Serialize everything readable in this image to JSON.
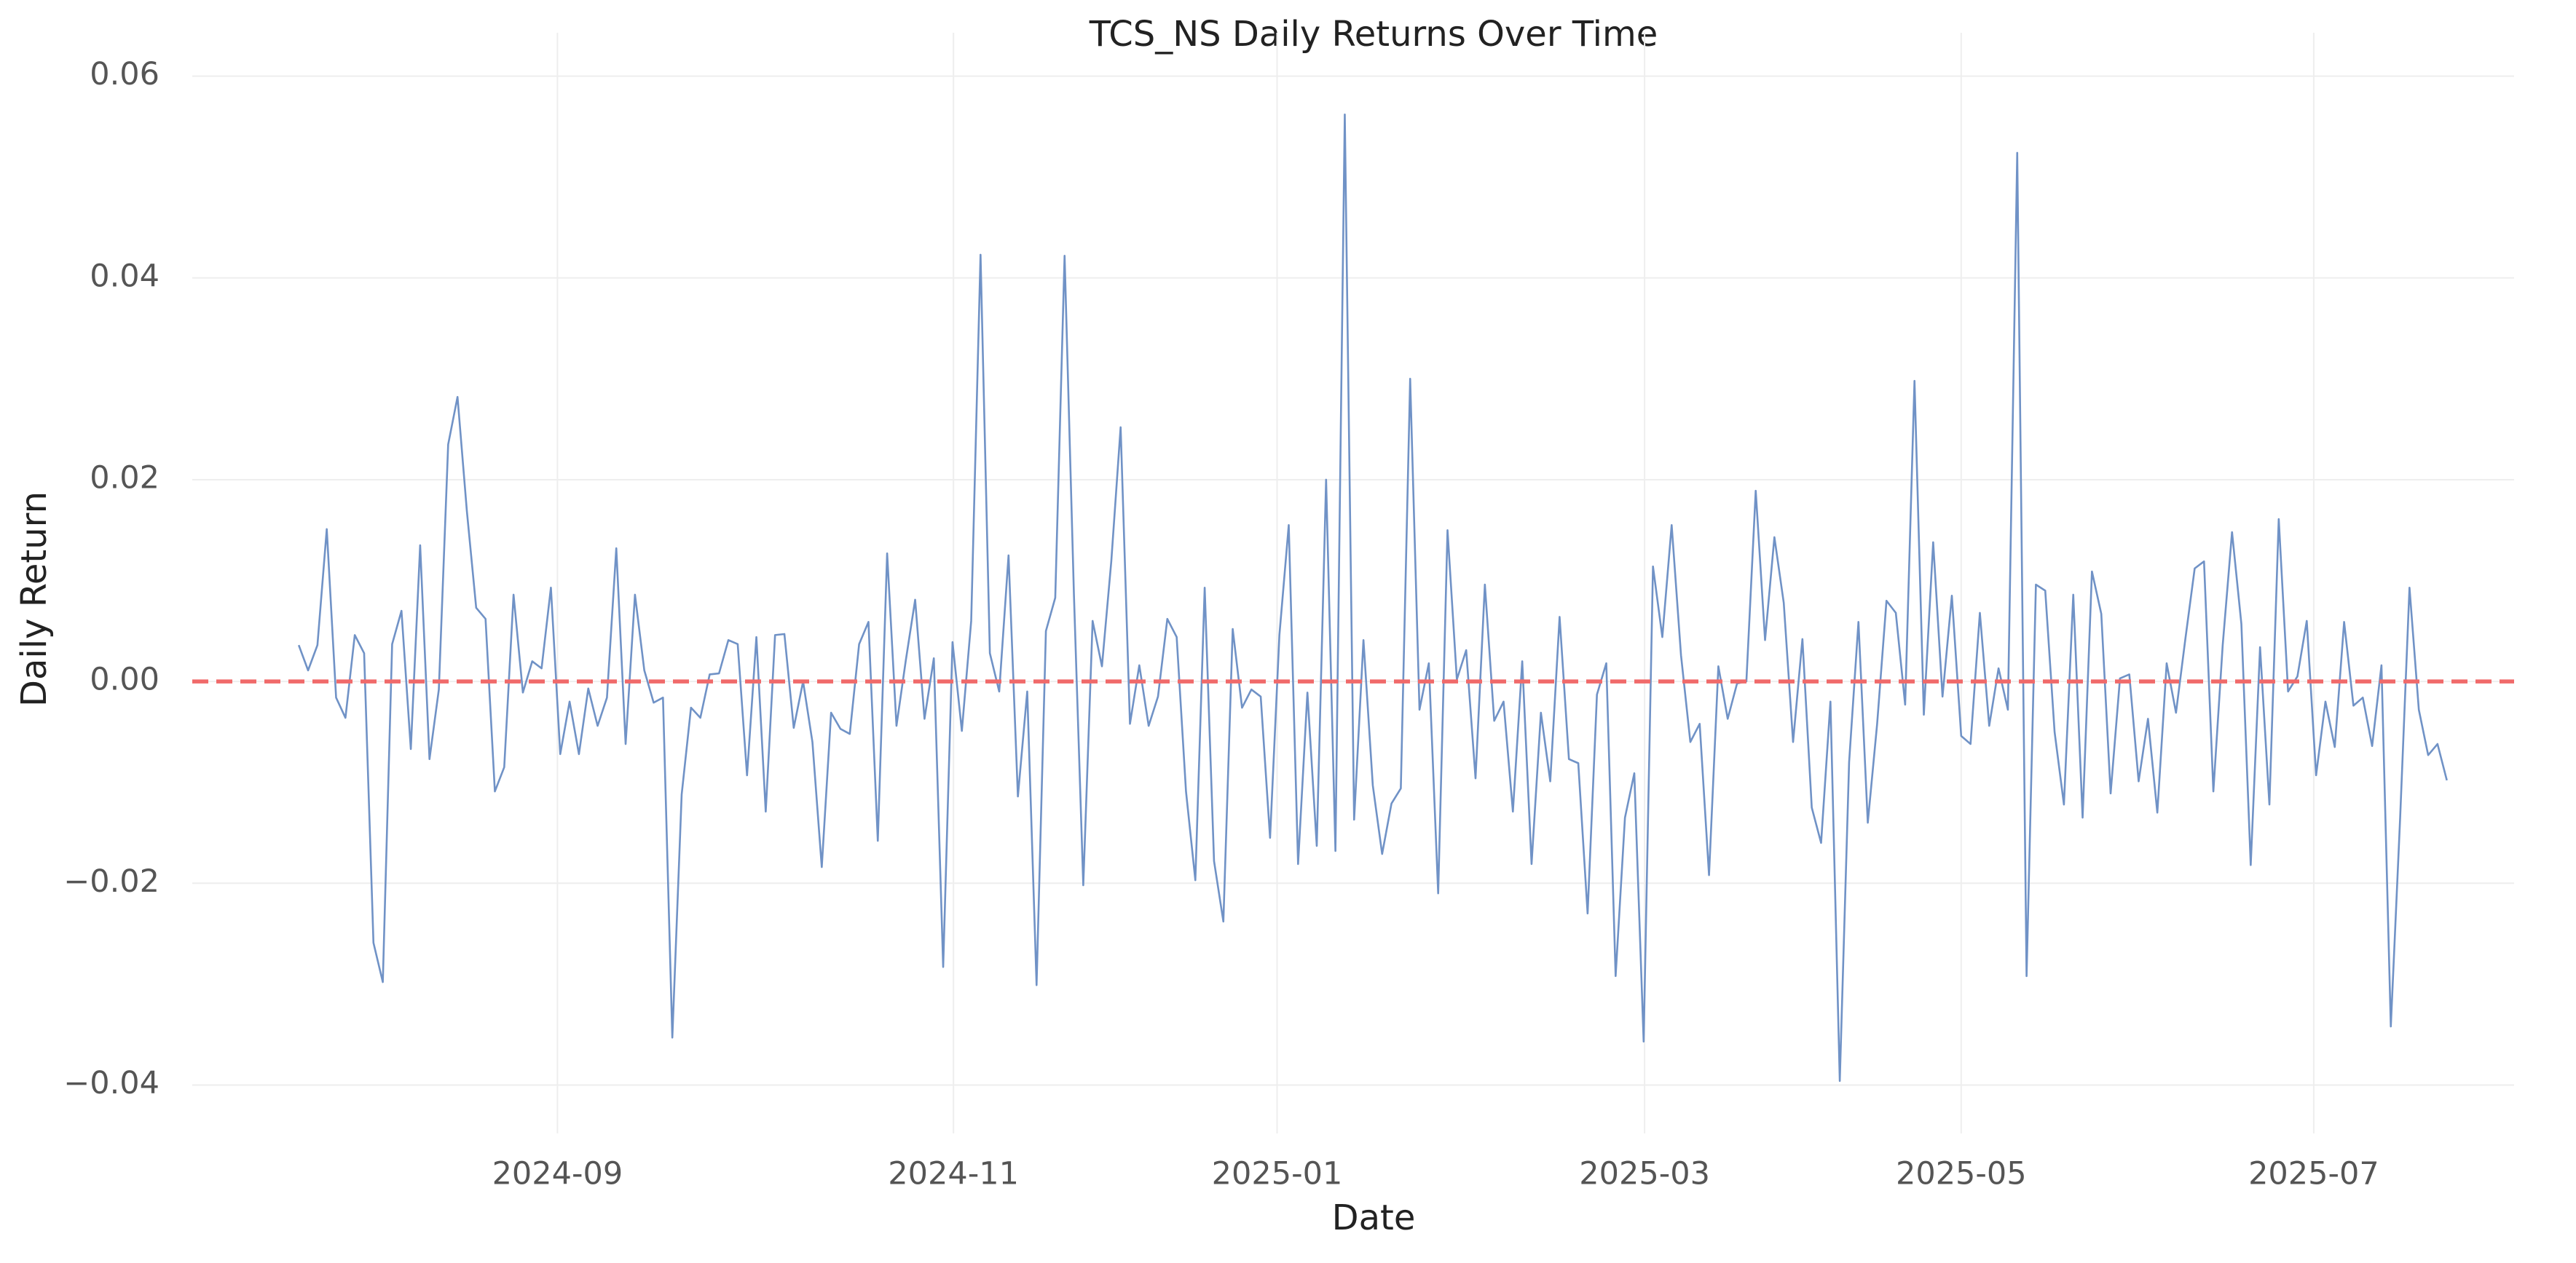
{
  "chart_data": {
    "type": "line",
    "title": "TCS_NS Daily Returns Over Time",
    "x_label": "Date",
    "y_label": "Daily Return",
    "color": "#7092c6",
    "values": [
      0.0036,
      0.0011,
      0.0036,
      0.0151,
      -0.0016,
      -0.0036,
      0.0046,
      0.0028,
      -0.0259,
      -0.0298,
      0.0037,
      0.007,
      -0.0067,
      0.0135,
      -0.0077,
      -0.0008,
      0.0235,
      0.0282,
      0.0169,
      0.0073,
      0.0062,
      -0.0109,
      -0.0085,
      0.0086,
      -0.0011,
      0.002,
      0.0013,
      0.0093,
      -0.0072,
      -0.002,
      -0.0072,
      -0.0007,
      -0.0044,
      -0.0016,
      0.0132,
      -0.0062,
      0.0086,
      0.0011,
      -0.0021,
      -0.0016,
      -0.0353,
      -0.0112,
      -0.0026,
      -0.0036,
      0.0007,
      0.0008,
      0.0041,
      0.0037,
      -0.0093,
      0.0044,
      -0.0129,
      0.0046,
      0.0047,
      -0.0046,
      0,
      -0.006,
      -0.0184,
      -0.0031,
      -0.0047,
      -0.0052,
      0.0037,
      0.0059,
      -0.0158,
      0.0127,
      -0.0044,
      0.0021,
      0.0081,
      -0.0037,
      0.0023,
      -0.0283,
      0.0039,
      -0.0049,
      0.006,
      0.0423,
      0.0028,
      -0.001,
      0.0125,
      -0.0114,
      -0.001,
      -0.0301,
      0.005,
      0.0083,
      0.0422,
      0.0086,
      -0.0202,
      0.006,
      0.0015,
      0.0119,
      0.0252,
      -0.0042,
      0.0016,
      -0.0044,
      -0.0015,
      0.0062,
      0.0044,
      -0.0109,
      -0.0197,
      0.0093,
      -0.0178,
      -0.0238,
      0.0052,
      -0.0026,
      -0.0008,
      -0.0015,
      -0.0155,
      0.0046,
      0.0155,
      -0.0181,
      -0.0011,
      -0.0163,
      0.02,
      -0.0168,
      0.0562,
      -0.0137,
      0.0041,
      -0.0103,
      -0.0171,
      -0.0121,
      -0.0106,
      0.03,
      -0.0028,
      0.0018,
      -0.021,
      0.015,
      0.0002,
      0.0031,
      -0.0096,
      0.0096,
      -0.0039,
      -0.002,
      -0.0129,
      0.002,
      -0.0181,
      -0.0031,
      -0.0099,
      0.0064,
      -0.0077,
      -0.0081,
      -0.023,
      -0.0013,
      0.0018,
      -0.0292,
      -0.0135,
      -0.0091,
      -0.0357,
      0.0114,
      0.0044,
      0.0155,
      0.0026,
      -0.006,
      -0.0042,
      -0.0192,
      0.0015,
      -0.0037,
      -0.0002,
      0,
      0.0189,
      0.0041,
      0.0143,
      0.0078,
      -0.006,
      0.0042,
      -0.0125,
      -0.016,
      -0.002,
      -0.0396,
      -0.008,
      0.0059,
      -0.014,
      -0.0042,
      0.008,
      0.0068,
      -0.0023,
      0.0298,
      -0.0033,
      0.0138,
      -0.0015,
      0.0085,
      -0.0054,
      -0.0062,
      0.0068,
      -0.0044,
      0.0013,
      -0.0028,
      0.0524,
      -0.0292,
      0.0096,
      0.009,
      -0.005,
      -0.0122,
      0.0086,
      -0.0135,
      0.0109,
      0.0067,
      -0.0111,
      0.0003,
      0.0007,
      -0.0099,
      -0.0037,
      -0.013,
      0.0018,
      -0.0031,
      0.0042,
      0.0112,
      0.0119,
      -0.0109,
      0.0036,
      0.0148,
      0.0057,
      -0.0182,
      0.0034,
      -0.0122,
      0.0161,
      -0.001,
      0.0005,
      0.006,
      -0.0093,
      -0.002,
      -0.0065,
      0.0059,
      -0.0024,
      -0.0016,
      -0.0064,
      0.0016,
      -0.0342,
      -0.0135,
      0.0093,
      -0.0028,
      -0.0073,
      -0.0062,
      -0.0098
    ],
    "reference_line": {
      "value": 0,
      "color": "#f06a6a"
    },
    "xlim": [
      -11.4,
      237.2
    ],
    "xticks": [
      {
        "value": 27.7,
        "label": "2024-09"
      },
      {
        "value": 70.1,
        "label": "2024-11"
      },
      {
        "value": 104.75,
        "label": "2025-01"
      },
      {
        "value": 144.1,
        "label": "2025-03"
      },
      {
        "value": 178,
        "label": "2025-05"
      },
      {
        "value": 215.75,
        "label": "2025-07"
      }
    ],
    "ylim": [
      -0.0448,
      0.0643
    ],
    "yticks": [
      {
        "value": -0.04,
        "label": "−0.04"
      },
      {
        "value": -0.02,
        "label": "−0.02"
      },
      {
        "value": 0,
        "label": "0.00"
      },
      0.02,
      0.04,
      0.06
    ],
    "grid": true
  }
}
